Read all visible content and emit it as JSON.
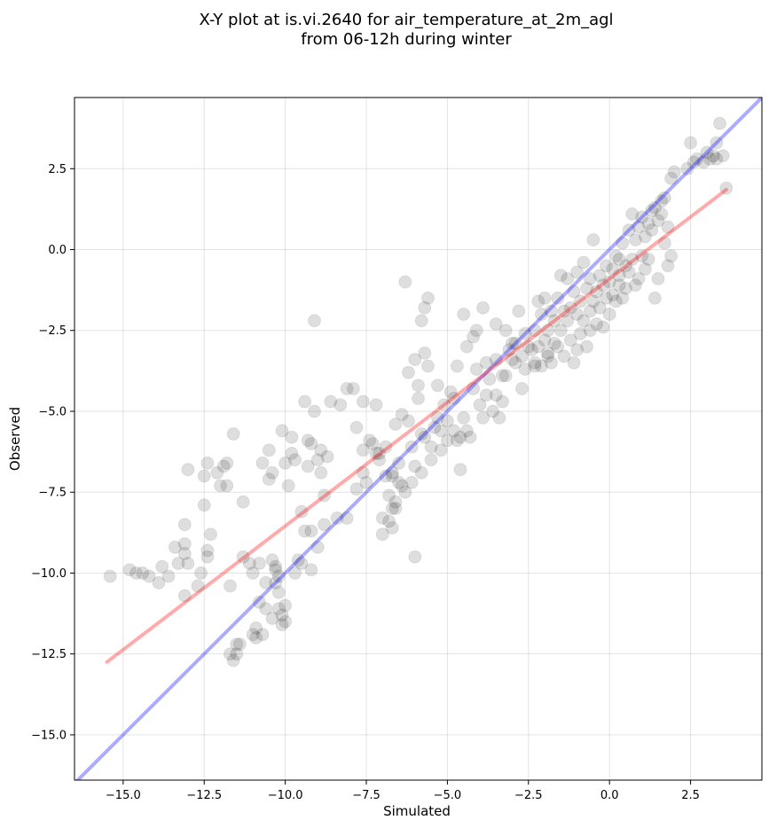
{
  "chart_data": {
    "type": "scatter",
    "title_line1": "X-Y plot at is.vi.2640 for air_temperature_at_2m_agl",
    "title_line2": "from 06-12h during winter",
    "xlabel": "Simulated",
    "ylabel": "Observed",
    "xlim": [
      -16.5,
      4.7
    ],
    "ylim": [
      -16.4,
      4.7
    ],
    "xticks": [
      -15.0,
      -12.5,
      -10.0,
      -7.5,
      -5.0,
      -2.5,
      0.0,
      2.5
    ],
    "xtick_labels": [
      "−15.0",
      "−12.5",
      "−10.0",
      "−7.5",
      "−5.0",
      "−2.5",
      "0.0",
      "2.5"
    ],
    "yticks": [
      -15.0,
      -12.5,
      -10.0,
      -7.5,
      -5.0,
      -2.5,
      0.0,
      2.5
    ],
    "ytick_labels": [
      "−15.0",
      "−12.5",
      "−10.0",
      "−7.5",
      "−5.0",
      "−2.5",
      "0.0",
      "2.5"
    ],
    "grid": true,
    "point_color": "#000000",
    "lines": [
      {
        "kind": "identity",
        "color": "#0000ff",
        "opacity": 0.33,
        "x": [
          -16.5,
          4.7
        ],
        "y": [
          -16.5,
          4.7
        ]
      },
      {
        "kind": "regression",
        "color": "#ff0000",
        "opacity": 0.33,
        "x": [
          -15.5,
          3.6
        ],
        "y": [
          -12.75,
          1.85
        ]
      }
    ],
    "points": [
      [
        -15.4,
        -10.1
      ],
      [
        -14.8,
        -9.9
      ],
      [
        -14.6,
        -10.0
      ],
      [
        -14.4,
        -10.0
      ],
      [
        -14.2,
        -10.1
      ],
      [
        -13.9,
        -10.3
      ],
      [
        -13.8,
        -9.8
      ],
      [
        -13.6,
        -10.1
      ],
      [
        -13.4,
        -9.2
      ],
      [
        -13.3,
        -9.7
      ],
      [
        -13.1,
        -9.1
      ],
      [
        -13.1,
        -9.4
      ],
      [
        -13.0,
        -9.7
      ],
      [
        -13.1,
        -10.7
      ],
      [
        -13.1,
        -8.5
      ],
      [
        -13.0,
        -6.8
      ],
      [
        -12.7,
        -10.4
      ],
      [
        -12.6,
        -10.0
      ],
      [
        -12.5,
        -7.9
      ],
      [
        -12.5,
        -7.0
      ],
      [
        -12.4,
        -6.6
      ],
      [
        -12.4,
        -9.3
      ],
      [
        -12.3,
        -8.8
      ],
      [
        -12.4,
        -9.5
      ],
      [
        -12.1,
        -6.9
      ],
      [
        -12.0,
        -7.3
      ],
      [
        -11.9,
        -6.7
      ],
      [
        -11.8,
        -6.6
      ],
      [
        -11.8,
        -7.3
      ],
      [
        -11.6,
        -5.7
      ],
      [
        -11.7,
        -10.4
      ],
      [
        -11.7,
        -12.5
      ],
      [
        -11.6,
        -12.7
      ],
      [
        -11.5,
        -12.2
      ],
      [
        -11.5,
        -12.5
      ],
      [
        -11.4,
        -12.2
      ],
      [
        -11.3,
        -7.8
      ],
      [
        -11.3,
        -9.5
      ],
      [
        -11.1,
        -9.7
      ],
      [
        -11.0,
        -11.9
      ],
      [
        -10.9,
        -11.7
      ],
      [
        -10.9,
        -12.0
      ],
      [
        -10.8,
        -9.7
      ],
      [
        -10.7,
        -6.6
      ],
      [
        -10.7,
        -11.9
      ],
      [
        -10.8,
        -10.9
      ],
      [
        -10.6,
        -10.3
      ],
      [
        -10.6,
        -11.1
      ],
      [
        -10.5,
        -6.2
      ],
      [
        -10.5,
        -7.1
      ],
      [
        -10.4,
        -6.9
      ],
      [
        -10.4,
        -9.6
      ],
      [
        -10.3,
        -9.8
      ],
      [
        -10.3,
        -9.9
      ],
      [
        -10.3,
        -10.3
      ],
      [
        -10.2,
        -10.1
      ],
      [
        -10.2,
        -10.6
      ],
      [
        -10.2,
        -11.1
      ],
      [
        -10.1,
        -11.3
      ],
      [
        -10.0,
        -11.0
      ],
      [
        -10.0,
        -11.5
      ],
      [
        -10.1,
        -5.6
      ],
      [
        -10.0,
        -6.6
      ],
      [
        -9.9,
        -7.3
      ],
      [
        -9.8,
        -5.8
      ],
      [
        -9.8,
        -6.3
      ],
      [
        -9.7,
        -6.5
      ],
      [
        -9.6,
        -9.6
      ],
      [
        -9.5,
        -9.7
      ],
      [
        -9.5,
        -8.1
      ],
      [
        -9.4,
        -8.7
      ],
      [
        -9.4,
        -4.7
      ],
      [
        -9.3,
        -5.9
      ],
      [
        -9.3,
        -6.7
      ],
      [
        -9.2,
        -6.0
      ],
      [
        -9.2,
        -8.7
      ],
      [
        -9.2,
        -9.9
      ],
      [
        -9.1,
        -5.0
      ],
      [
        -9.1,
        -2.2
      ],
      [
        -9.0,
        -6.5
      ],
      [
        -9.0,
        -9.2
      ],
      [
        -8.9,
        -6.9
      ],
      [
        -8.9,
        -6.2
      ],
      [
        -8.8,
        -8.5
      ],
      [
        -8.8,
        -7.6
      ],
      [
        -8.7,
        -6.4
      ],
      [
        -8.6,
        -4.7
      ],
      [
        -8.4,
        -8.3
      ],
      [
        -8.3,
        -4.8
      ],
      [
        -8.1,
        -8.3
      ],
      [
        -8.1,
        -4.3
      ],
      [
        -7.9,
        -4.3
      ],
      [
        -7.8,
        -7.4
      ],
      [
        -7.8,
        -5.5
      ],
      [
        -7.6,
        -6.2
      ],
      [
        -7.6,
        -6.9
      ],
      [
        -7.6,
        -4.7
      ],
      [
        -7.5,
        -7.2
      ],
      [
        -7.4,
        -5.9
      ],
      [
        -7.3,
        -6.0
      ],
      [
        -7.2,
        -6.3
      ],
      [
        -7.2,
        -4.8
      ],
      [
        -7.1,
        -6.3
      ],
      [
        -7.1,
        -6.5
      ],
      [
        -7.0,
        -8.3
      ],
      [
        -7.0,
        -8.8
      ],
      [
        -6.9,
        -6.1
      ],
      [
        -6.9,
        -7.0
      ],
      [
        -6.8,
        -8.4
      ],
      [
        -6.8,
        -7.6
      ],
      [
        -6.7,
        -8.6
      ],
      [
        -6.7,
        -7.0
      ],
      [
        -6.7,
        -8.0
      ],
      [
        -6.6,
        -8.0
      ],
      [
        -6.6,
        -7.8
      ],
      [
        -6.6,
        -5.4
      ],
      [
        -6.5,
        -6.6
      ],
      [
        -6.5,
        -7.2
      ],
      [
        -6.4,
        -5.1
      ],
      [
        -6.4,
        -7.3
      ],
      [
        -6.3,
        -7.5
      ],
      [
        -6.3,
        -1.0
      ],
      [
        -6.2,
        -3.8
      ],
      [
        -6.2,
        -5.3
      ],
      [
        -6.1,
        -7.2
      ],
      [
        -6.1,
        -6.1
      ],
      [
        -6.0,
        -6.7
      ],
      [
        -6.0,
        -9.5
      ],
      [
        -6.0,
        -3.4
      ],
      [
        -5.9,
        -4.2
      ],
      [
        -5.9,
        -4.6
      ],
      [
        -5.8,
        -2.2
      ],
      [
        -5.8,
        -5.7
      ],
      [
        -5.8,
        -6.9
      ],
      [
        -5.7,
        -5.8
      ],
      [
        -5.7,
        -1.8
      ],
      [
        -5.7,
        -3.2
      ],
      [
        -5.6,
        -1.5
      ],
      [
        -5.6,
        -3.6
      ],
      [
        -5.5,
        -6.1
      ],
      [
        -5.5,
        -6.5
      ],
      [
        -5.4,
        -5.5
      ],
      [
        -5.3,
        -4.2
      ],
      [
        -5.3,
        -5.2
      ],
      [
        -5.2,
        -5.6
      ],
      [
        -5.2,
        -6.2
      ],
      [
        -5.1,
        -4.8
      ],
      [
        -5.0,
        -5.3
      ],
      [
        -5.0,
        -5.9
      ],
      [
        -4.9,
        -4.4
      ],
      [
        -4.8,
        -4.6
      ],
      [
        -4.8,
        -5.6
      ],
      [
        -4.7,
        -3.6
      ],
      [
        -4.7,
        -5.9
      ],
      [
        -4.6,
        -5.8
      ],
      [
        -4.6,
        -6.8
      ],
      [
        -4.5,
        -2.0
      ],
      [
        -4.4,
        -3.0
      ],
      [
        -4.4,
        -5.6
      ],
      [
        -4.3,
        -5.8
      ],
      [
        -4.2,
        -2.7
      ],
      [
        -4.2,
        -4.3
      ],
      [
        -4.1,
        -2.5
      ],
      [
        -4.1,
        -3.7
      ],
      [
        -4.0,
        -4.8
      ],
      [
        -3.9,
        -1.8
      ],
      [
        -3.9,
        -5.2
      ],
      [
        -3.8,
        -3.5
      ],
      [
        -3.8,
        -4.5
      ],
      [
        -3.7,
        -4.0
      ],
      [
        -3.6,
        -5.0
      ],
      [
        -3.5,
        -2.3
      ],
      [
        -3.5,
        -3.4
      ],
      [
        -3.5,
        -4.5
      ],
      [
        -3.4,
        -5.2
      ],
      [
        -3.3,
        -3.9
      ],
      [
        -3.3,
        -4.7
      ],
      [
        -3.2,
        -2.5
      ],
      [
        -3.2,
        -3.9
      ],
      [
        -3.1,
        -3.1
      ],
      [
        -3.0,
        -3.4
      ],
      [
        -2.9,
        -2.9
      ],
      [
        -2.8,
        -1.9
      ],
      [
        -2.7,
        -3.3
      ],
      [
        -2.7,
        -4.3
      ],
      [
        -2.6,
        -2.6
      ],
      [
        -2.6,
        -3.7
      ],
      [
        -2.5,
        -3.0
      ],
      [
        -2.4,
        -3.1
      ],
      [
        -2.3,
        -2.5
      ],
      [
        -2.3,
        -3.5
      ],
      [
        -2.2,
        -1.6
      ],
      [
        -2.2,
        -3.0
      ],
      [
        -2.1,
        -2.0
      ],
      [
        -2.1,
        -3.6
      ],
      [
        -2.0,
        -2.8
      ],
      [
        -2.0,
        -1.5
      ],
      [
        -1.9,
        -3.2
      ],
      [
        -1.9,
        -2.5
      ],
      [
        -1.8,
        -1.9
      ],
      [
        -1.8,
        -3.5
      ],
      [
        -1.7,
        -2.2
      ],
      [
        -1.7,
        -2.9
      ],
      [
        -1.6,
        -1.5
      ],
      [
        -1.6,
        -3.0
      ],
      [
        -1.5,
        -0.8
      ],
      [
        -1.5,
        -2.5
      ],
      [
        -1.4,
        -1.9
      ],
      [
        -1.4,
        -3.3
      ],
      [
        -1.3,
        -2.2
      ],
      [
        -1.3,
        -0.9
      ],
      [
        -1.2,
        -1.8
      ],
      [
        -1.2,
        -2.8
      ],
      [
        -1.1,
        -1.3
      ],
      [
        -1.1,
        -3.5
      ],
      [
        -1.0,
        -2.0
      ],
      [
        -1.0,
        -0.7
      ],
      [
        -0.9,
        -1.6
      ],
      [
        -0.9,
        -2.6
      ],
      [
        -0.8,
        -0.4
      ],
      [
        -0.8,
        -2.2
      ],
      [
        -0.7,
        -1.2
      ],
      [
        -0.7,
        -3.0
      ],
      [
        -0.6,
        -0.9
      ],
      [
        -0.6,
        -2.5
      ],
      [
        -0.5,
        0.3
      ],
      [
        -0.5,
        -1.6
      ],
      [
        -0.4,
        -1.3
      ],
      [
        -0.4,
        -2.3
      ],
      [
        -0.3,
        -0.8
      ],
      [
        -0.3,
        -1.8
      ],
      [
        -0.2,
        -2.4
      ],
      [
        -0.1,
        -0.5
      ],
      [
        -0.1,
        -1.5
      ],
      [
        0.0,
        -1.0
      ],
      [
        0.0,
        -2.0
      ],
      [
        0.1,
        -0.6
      ],
      [
        0.1,
        -1.4
      ],
      [
        0.2,
        -0.2
      ],
      [
        0.2,
        -1.6
      ],
      [
        0.3,
        -0.8
      ],
      [
        0.3,
        -1.1
      ],
      [
        0.4,
        0.2
      ],
      [
        0.4,
        -1.5
      ],
      [
        0.5,
        -0.5
      ],
      [
        0.5,
        -1.2
      ],
      [
        0.6,
        0.6
      ],
      [
        0.6,
        -0.7
      ],
      [
        0.7,
        1.1
      ],
      [
        0.7,
        -0.3
      ],
      [
        0.8,
        -1.1
      ],
      [
        0.8,
        0.3
      ],
      [
        0.9,
        -0.9
      ],
      [
        0.9,
        0.7
      ],
      [
        1.0,
        -0.2
      ],
      [
        1.0,
        1.0
      ],
      [
        1.1,
        -0.6
      ],
      [
        1.1,
        0.4
      ],
      [
        1.2,
        0.8
      ],
      [
        1.2,
        -0.3
      ],
      [
        1.3,
        1.2
      ],
      [
        1.3,
        0.6
      ],
      [
        1.4,
        -1.5
      ],
      [
        1.4,
        1.3
      ],
      [
        1.5,
        0.9
      ],
      [
        1.5,
        -0.9
      ],
      [
        1.6,
        1.5
      ],
      [
        1.6,
        1.1
      ],
      [
        1.7,
        1.6
      ],
      [
        1.7,
        0.2
      ],
      [
        1.8,
        0.7
      ],
      [
        1.8,
        -0.5
      ],
      [
        1.9,
        2.2
      ],
      [
        1.9,
        -0.2
      ],
      [
        2.0,
        2.4
      ],
      [
        2.4,
        2.5
      ],
      [
        2.5,
        3.3
      ],
      [
        2.6,
        2.7
      ],
      [
        2.7,
        2.8
      ],
      [
        2.9,
        2.7
      ],
      [
        3.0,
        3.0
      ],
      [
        3.1,
        2.8
      ],
      [
        3.2,
        2.9
      ],
      [
        3.3,
        3.3
      ],
      [
        3.3,
        2.8
      ],
      [
        3.4,
        3.9
      ],
      [
        3.5,
        2.9
      ],
      [
        3.6,
        1.9
      ],
      [
        -2.3,
        -3.6
      ],
      [
        -1.9,
        -3.3
      ],
      [
        -1.0,
        -3.1
      ],
      [
        -0.2,
        -1.1
      ],
      [
        0.3,
        -0.3
      ],
      [
        -3.0,
        -2.9
      ],
      [
        -4.5,
        -5.2
      ],
      [
        -6.7,
        -6.9
      ],
      [
        -10.1,
        -11.6
      ],
      [
        -10.4,
        -11.4
      ],
      [
        -11.0,
        -10.0
      ],
      [
        -9.7,
        -10.0
      ],
      [
        -2.9,
        -3.5
      ],
      [
        -0.6,
        -1.9
      ]
    ]
  }
}
